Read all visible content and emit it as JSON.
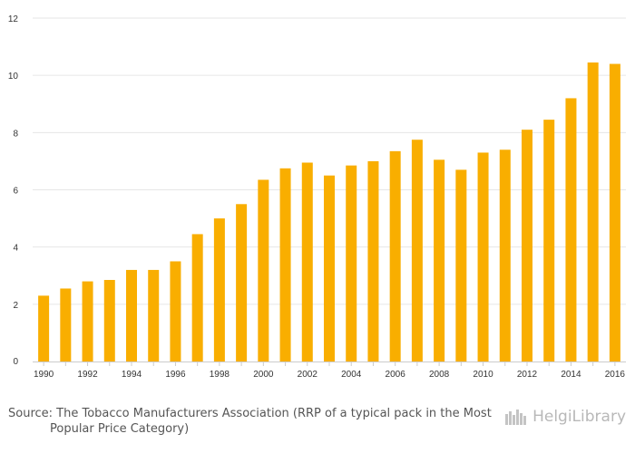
{
  "chart_data": {
    "type": "bar",
    "title": "",
    "xlabel": "",
    "ylabel": "",
    "x": [
      1990,
      1991,
      1992,
      1993,
      1994,
      1995,
      1996,
      1997,
      1998,
      1999,
      2000,
      2001,
      2002,
      2003,
      2004,
      2005,
      2006,
      2007,
      2008,
      2009,
      2010,
      2011,
      2012,
      2013,
      2014,
      2015,
      2016
    ],
    "values": [
      2.3,
      2.55,
      2.8,
      2.85,
      3.2,
      3.2,
      3.5,
      4.45,
      5.0,
      5.5,
      6.35,
      6.75,
      6.95,
      6.5,
      6.85,
      7.0,
      7.35,
      7.75,
      7.05,
      6.7,
      7.3,
      7.4,
      8.1,
      8.45,
      9.2,
      10.45,
      10.4
    ],
    "ylim": [
      0,
      12
    ],
    "yticks": [
      0,
      2,
      4,
      6,
      8,
      10,
      12
    ],
    "xtick_labels": [
      "1990",
      "1992",
      "1994",
      "1996",
      "1998",
      "2000",
      "2002",
      "2004",
      "2006",
      "2008",
      "2010",
      "2012",
      "2014",
      "2016"
    ],
    "grid": true,
    "bar_color": "#F9AE00"
  },
  "source": {
    "line1": "Source: The Tobacco Manufacturers Association (RRP of a typical pack in the Most",
    "line2": "Popular Price Category)"
  },
  "brand": {
    "name": "HelgiLibrary"
  }
}
